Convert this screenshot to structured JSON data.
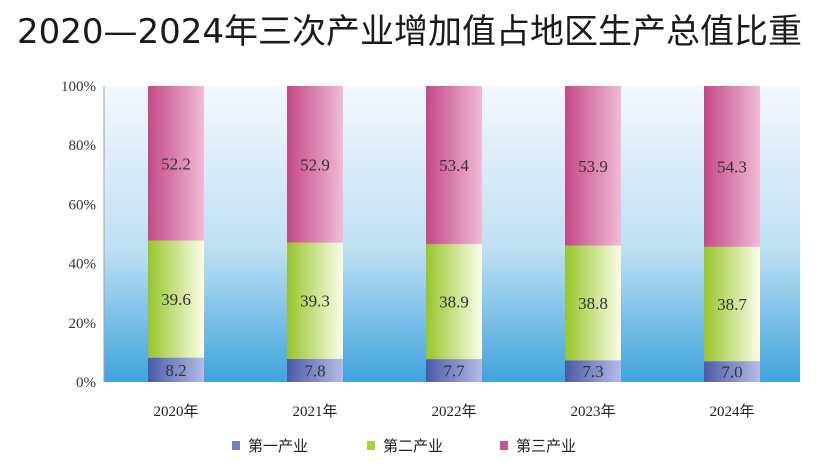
{
  "chart_data": {
    "type": "bar",
    "stacked": true,
    "title": "2020—2024年三次产业增加值占地区生产总值比重",
    "categories": [
      "2020年",
      "2021年",
      "2022年",
      "2023年",
      "2024年"
    ],
    "series": [
      {
        "name": "第一产业",
        "values": [
          8.2,
          7.8,
          7.7,
          7.3,
          7.0
        ],
        "color": "#6f7fc2"
      },
      {
        "name": "第二产业",
        "values": [
          39.6,
          39.3,
          38.9,
          38.8,
          38.7
        ],
        "color": "#a8d040"
      },
      {
        "name": "第三产业",
        "values": [
          52.2,
          52.9,
          53.4,
          53.9,
          54.3
        ],
        "color": "#c9558f"
      }
    ],
    "yticks": [
      "0%",
      "20%",
      "40%",
      "60%",
      "80%",
      "100%"
    ],
    "ylim": [
      0,
      100
    ],
    "legend_position": "bottom",
    "grid": false
  }
}
